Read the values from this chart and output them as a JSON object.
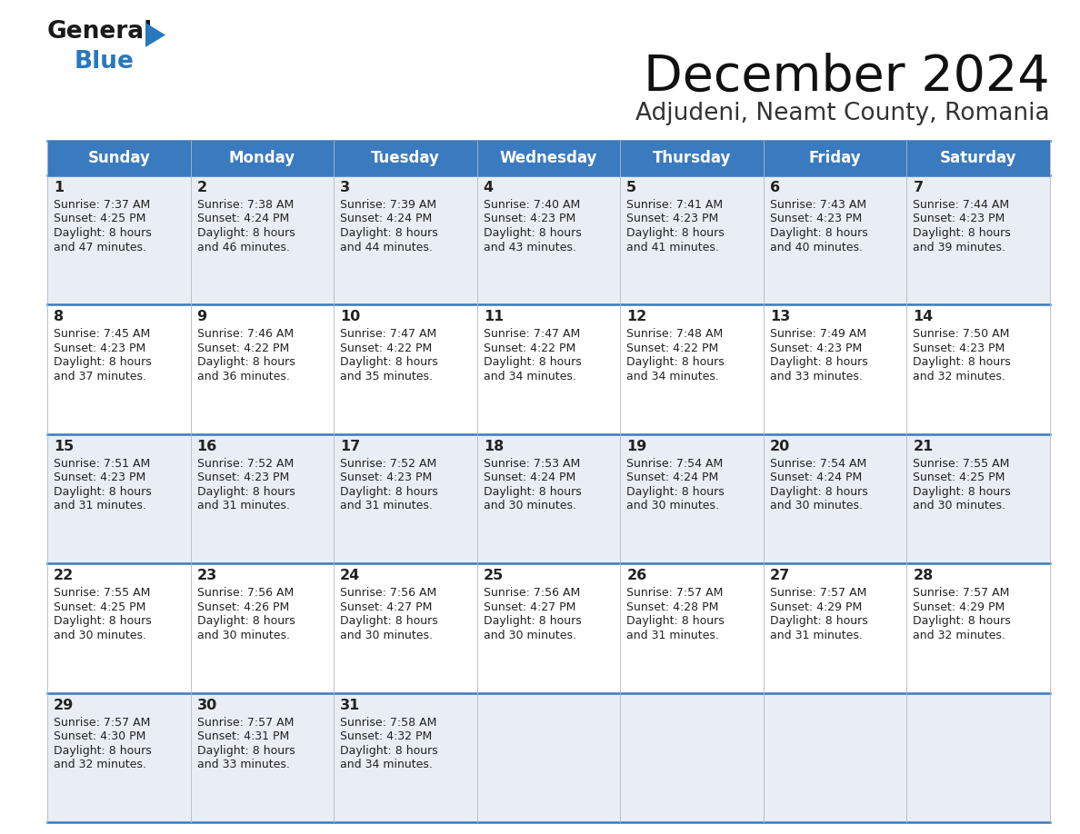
{
  "title": "December 2024",
  "subtitle": "Adjudeni, Neamt County, Romania",
  "header_bg": "#3a7abf",
  "header_text_color": "#ffffff",
  "row_bg_odd": "#e8eef4",
  "row_bg_even": "#ffffff",
  "border_color": "#3a7abf",
  "text_color": "#222222",
  "day_names": [
    "Sunday",
    "Monday",
    "Tuesday",
    "Wednesday",
    "Thursday",
    "Friday",
    "Saturday"
  ],
  "days": [
    {
      "day": 1,
      "col": 0,
      "row": 0,
      "sunrise": "7:37 AM",
      "sunset": "4:25 PM",
      "dl1": "Daylight: 8 hours",
      "dl2": "and 47 minutes."
    },
    {
      "day": 2,
      "col": 1,
      "row": 0,
      "sunrise": "7:38 AM",
      "sunset": "4:24 PM",
      "dl1": "Daylight: 8 hours",
      "dl2": "and 46 minutes."
    },
    {
      "day": 3,
      "col": 2,
      "row": 0,
      "sunrise": "7:39 AM",
      "sunset": "4:24 PM",
      "dl1": "Daylight: 8 hours",
      "dl2": "and 44 minutes."
    },
    {
      "day": 4,
      "col": 3,
      "row": 0,
      "sunrise": "7:40 AM",
      "sunset": "4:23 PM",
      "dl1": "Daylight: 8 hours",
      "dl2": "and 43 minutes."
    },
    {
      "day": 5,
      "col": 4,
      "row": 0,
      "sunrise": "7:41 AM",
      "sunset": "4:23 PM",
      "dl1": "Daylight: 8 hours",
      "dl2": "and 41 minutes."
    },
    {
      "day": 6,
      "col": 5,
      "row": 0,
      "sunrise": "7:43 AM",
      "sunset": "4:23 PM",
      "dl1": "Daylight: 8 hours",
      "dl2": "and 40 minutes."
    },
    {
      "day": 7,
      "col": 6,
      "row": 0,
      "sunrise": "7:44 AM",
      "sunset": "4:23 PM",
      "dl1": "Daylight: 8 hours",
      "dl2": "and 39 minutes."
    },
    {
      "day": 8,
      "col": 0,
      "row": 1,
      "sunrise": "7:45 AM",
      "sunset": "4:23 PM",
      "dl1": "Daylight: 8 hours",
      "dl2": "and 37 minutes."
    },
    {
      "day": 9,
      "col": 1,
      "row": 1,
      "sunrise": "7:46 AM",
      "sunset": "4:22 PM",
      "dl1": "Daylight: 8 hours",
      "dl2": "and 36 minutes."
    },
    {
      "day": 10,
      "col": 2,
      "row": 1,
      "sunrise": "7:47 AM",
      "sunset": "4:22 PM",
      "dl1": "Daylight: 8 hours",
      "dl2": "and 35 minutes."
    },
    {
      "day": 11,
      "col": 3,
      "row": 1,
      "sunrise": "7:47 AM",
      "sunset": "4:22 PM",
      "dl1": "Daylight: 8 hours",
      "dl2": "and 34 minutes."
    },
    {
      "day": 12,
      "col": 4,
      "row": 1,
      "sunrise": "7:48 AM",
      "sunset": "4:22 PM",
      "dl1": "Daylight: 8 hours",
      "dl2": "and 34 minutes."
    },
    {
      "day": 13,
      "col": 5,
      "row": 1,
      "sunrise": "7:49 AM",
      "sunset": "4:23 PM",
      "dl1": "Daylight: 8 hours",
      "dl2": "and 33 minutes."
    },
    {
      "day": 14,
      "col": 6,
      "row": 1,
      "sunrise": "7:50 AM",
      "sunset": "4:23 PM",
      "dl1": "Daylight: 8 hours",
      "dl2": "and 32 minutes."
    },
    {
      "day": 15,
      "col": 0,
      "row": 2,
      "sunrise": "7:51 AM",
      "sunset": "4:23 PM",
      "dl1": "Daylight: 8 hours",
      "dl2": "and 31 minutes."
    },
    {
      "day": 16,
      "col": 1,
      "row": 2,
      "sunrise": "7:52 AM",
      "sunset": "4:23 PM",
      "dl1": "Daylight: 8 hours",
      "dl2": "and 31 minutes."
    },
    {
      "day": 17,
      "col": 2,
      "row": 2,
      "sunrise": "7:52 AM",
      "sunset": "4:23 PM",
      "dl1": "Daylight: 8 hours",
      "dl2": "and 31 minutes."
    },
    {
      "day": 18,
      "col": 3,
      "row": 2,
      "sunrise": "7:53 AM",
      "sunset": "4:24 PM",
      "dl1": "Daylight: 8 hours",
      "dl2": "and 30 minutes."
    },
    {
      "day": 19,
      "col": 4,
      "row": 2,
      "sunrise": "7:54 AM",
      "sunset": "4:24 PM",
      "dl1": "Daylight: 8 hours",
      "dl2": "and 30 minutes."
    },
    {
      "day": 20,
      "col": 5,
      "row": 2,
      "sunrise": "7:54 AM",
      "sunset": "4:24 PM",
      "dl1": "Daylight: 8 hours",
      "dl2": "and 30 minutes."
    },
    {
      "day": 21,
      "col": 6,
      "row": 2,
      "sunrise": "7:55 AM",
      "sunset": "4:25 PM",
      "dl1": "Daylight: 8 hours",
      "dl2": "and 30 minutes."
    },
    {
      "day": 22,
      "col": 0,
      "row": 3,
      "sunrise": "7:55 AM",
      "sunset": "4:25 PM",
      "dl1": "Daylight: 8 hours",
      "dl2": "and 30 minutes."
    },
    {
      "day": 23,
      "col": 1,
      "row": 3,
      "sunrise": "7:56 AM",
      "sunset": "4:26 PM",
      "dl1": "Daylight: 8 hours",
      "dl2": "and 30 minutes."
    },
    {
      "day": 24,
      "col": 2,
      "row": 3,
      "sunrise": "7:56 AM",
      "sunset": "4:27 PM",
      "dl1": "Daylight: 8 hours",
      "dl2": "and 30 minutes."
    },
    {
      "day": 25,
      "col": 3,
      "row": 3,
      "sunrise": "7:56 AM",
      "sunset": "4:27 PM",
      "dl1": "Daylight: 8 hours",
      "dl2": "and 30 minutes."
    },
    {
      "day": 26,
      "col": 4,
      "row": 3,
      "sunrise": "7:57 AM",
      "sunset": "4:28 PM",
      "dl1": "Daylight: 8 hours",
      "dl2": "and 31 minutes."
    },
    {
      "day": 27,
      "col": 5,
      "row": 3,
      "sunrise": "7:57 AM",
      "sunset": "4:29 PM",
      "dl1": "Daylight: 8 hours",
      "dl2": "and 31 minutes."
    },
    {
      "day": 28,
      "col": 6,
      "row": 3,
      "sunrise": "7:57 AM",
      "sunset": "4:29 PM",
      "dl1": "Daylight: 8 hours",
      "dl2": "and 32 minutes."
    },
    {
      "day": 29,
      "col": 0,
      "row": 4,
      "sunrise": "7:57 AM",
      "sunset": "4:30 PM",
      "dl1": "Daylight: 8 hours",
      "dl2": "and 32 minutes."
    },
    {
      "day": 30,
      "col": 1,
      "row": 4,
      "sunrise": "7:57 AM",
      "sunset": "4:31 PM",
      "dl1": "Daylight: 8 hours",
      "dl2": "and 33 minutes."
    },
    {
      "day": 31,
      "col": 2,
      "row": 4,
      "sunrise": "7:58 AM",
      "sunset": "4:32 PM",
      "dl1": "Daylight: 8 hours",
      "dl2": "and 34 minutes."
    }
  ],
  "num_rows": 5,
  "logo_color_black": "#1a1a1a",
  "logo_color_blue": "#2878be",
  "logo_triangle_color": "#2878be"
}
